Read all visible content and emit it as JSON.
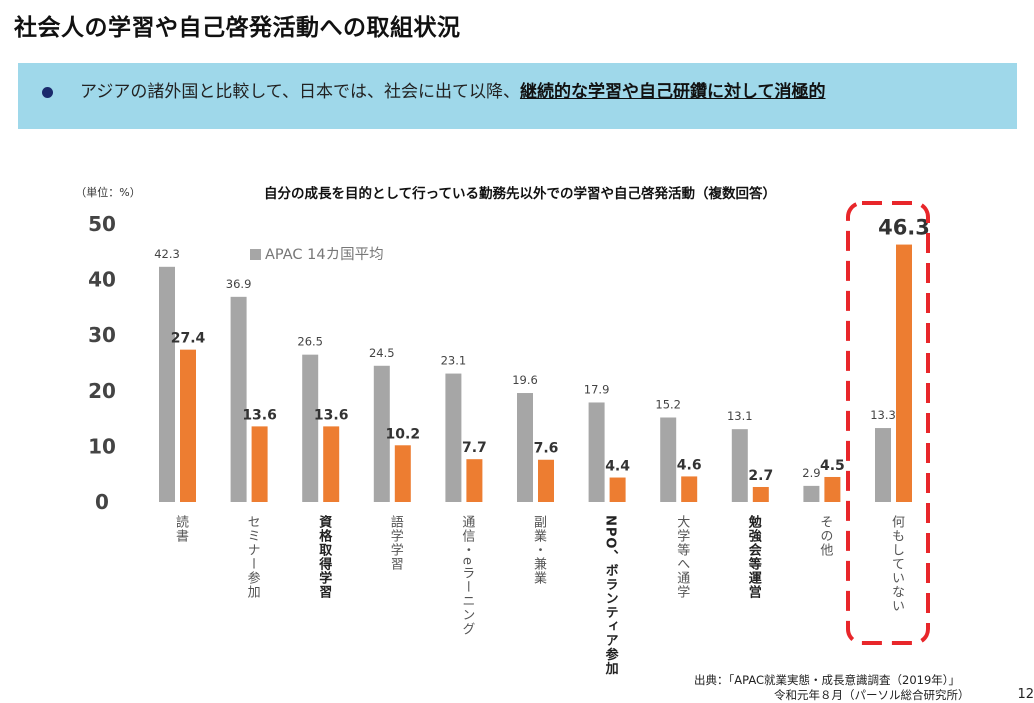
{
  "page": {
    "title": "社会人の学習や自己啓発活動への取組状況",
    "banner_bullet_text": "アジアの諸外国と比較して、日本では、社会に出て以降、",
    "banner_emphasis": "継続的な学習や自己研鑽に対して消極的",
    "source_line1": "出典：「APAC就業実態・成長意識調査（2019年）」",
    "source_line2": "令和元年８月（パーソル総合研究所）",
    "page_number": "12"
  },
  "chart_data": {
    "type": "bar",
    "title": "自分の成長を目的として行っている勤務先以外での学習や自己啓発活動（複数回答）",
    "unit_label": "（単位：%）",
    "ylim": [
      0,
      50
    ],
    "yticks": [
      "0",
      "10",
      "20",
      "30",
      "40",
      "50"
    ],
    "categories": [
      "読書",
      "セミナー参加",
      "資格取得学習",
      "語学学習",
      "通信・eラーニング",
      "副業・兼業",
      "NPO、ボランティア参加",
      "大学等へ通学",
      "勉強会等運営",
      "その他",
      "何もしていない"
    ],
    "bold_categories": [
      false,
      false,
      true,
      false,
      false,
      false,
      true,
      false,
      true,
      false,
      false
    ],
    "series": [
      {
        "name": "APAC 14カ国平均",
        "color": "#a6a6a6",
        "values": [
          42.3,
          36.9,
          26.5,
          24.5,
          23.1,
          19.6,
          17.9,
          15.2,
          13.1,
          2.9,
          13.3
        ],
        "labels": [
          "42.3",
          "36.9",
          "26.5",
          "24.5",
          "23.1",
          "19.6",
          "17.9",
          "15.2",
          "13.1",
          "2.9",
          "13.3"
        ]
      },
      {
        "color": "#ed7d31",
        "values": [
          27.4,
          13.6,
          13.6,
          10.2,
          7.7,
          7.6,
          4.4,
          4.6,
          2.7,
          4.5,
          46.3
        ],
        "labels": [
          "27.4",
          "13.6",
          "13.6",
          "10.2",
          "7.7",
          "7.6",
          "4.4",
          "4.6",
          "2.7",
          "4.5",
          "46.3"
        ]
      }
    ],
    "highlight_color": "#e8262a",
    "grid": false,
    "legend": "top-left"
  }
}
